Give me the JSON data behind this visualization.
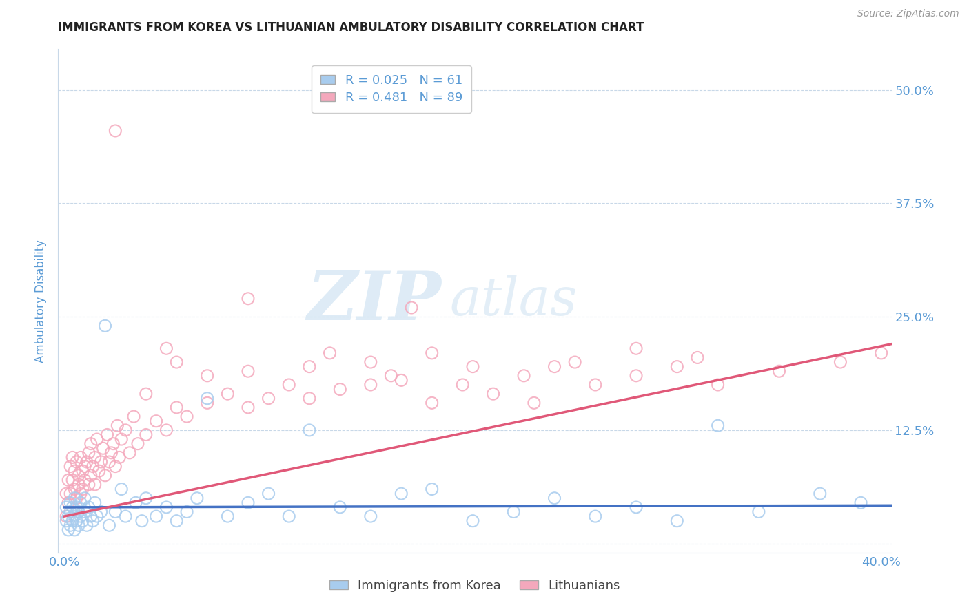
{
  "title": "IMMIGRANTS FROM KOREA VS LITHUANIAN AMBULATORY DISABILITY CORRELATION CHART",
  "source": "Source: ZipAtlas.com",
  "ylabel": "Ambulatory Disability",
  "y_ticks": [
    0.0,
    0.125,
    0.25,
    0.375,
    0.5
  ],
  "y_tick_labels": [
    "",
    "12.5%",
    "25.0%",
    "37.5%",
    "50.0%"
  ],
  "xlim": [
    -0.003,
    0.405
  ],
  "ylim": [
    -0.01,
    0.545
  ],
  "legend_entries": [
    {
      "label": "Immigrants from Korea",
      "R": "0.025",
      "N": "61",
      "color": "#a8ccee"
    },
    {
      "label": "Lithuanians",
      "R": "0.481",
      "N": "89",
      "color": "#f4a8bc"
    }
  ],
  "blue_scatter_x": [
    0.001,
    0.001,
    0.002,
    0.002,
    0.003,
    0.003,
    0.003,
    0.004,
    0.004,
    0.005,
    0.005,
    0.005,
    0.006,
    0.006,
    0.007,
    0.007,
    0.008,
    0.008,
    0.009,
    0.01,
    0.01,
    0.011,
    0.012,
    0.013,
    0.014,
    0.015,
    0.016,
    0.018,
    0.02,
    0.022,
    0.025,
    0.028,
    0.03,
    0.035,
    0.038,
    0.04,
    0.045,
    0.05,
    0.055,
    0.06,
    0.065,
    0.07,
    0.08,
    0.09,
    0.1,
    0.11,
    0.12,
    0.135,
    0.15,
    0.165,
    0.18,
    0.2,
    0.22,
    0.24,
    0.26,
    0.28,
    0.3,
    0.32,
    0.34,
    0.37,
    0.39
  ],
  "blue_scatter_y": [
    0.04,
    0.025,
    0.03,
    0.015,
    0.035,
    0.02,
    0.045,
    0.025,
    0.04,
    0.03,
    0.015,
    0.05,
    0.025,
    0.04,
    0.02,
    0.035,
    0.03,
    0.045,
    0.025,
    0.035,
    0.05,
    0.02,
    0.04,
    0.03,
    0.025,
    0.045,
    0.03,
    0.035,
    0.24,
    0.02,
    0.035,
    0.06,
    0.03,
    0.045,
    0.025,
    0.05,
    0.03,
    0.04,
    0.025,
    0.035,
    0.05,
    0.16,
    0.03,
    0.045,
    0.055,
    0.03,
    0.125,
    0.04,
    0.03,
    0.055,
    0.06,
    0.025,
    0.035,
    0.05,
    0.03,
    0.04,
    0.025,
    0.13,
    0.035,
    0.055,
    0.045
  ],
  "pink_scatter_x": [
    0.001,
    0.001,
    0.002,
    0.002,
    0.003,
    0.003,
    0.004,
    0.004,
    0.005,
    0.005,
    0.006,
    0.006,
    0.007,
    0.007,
    0.008,
    0.008,
    0.009,
    0.009,
    0.01,
    0.01,
    0.011,
    0.012,
    0.012,
    0.013,
    0.013,
    0.014,
    0.015,
    0.015,
    0.016,
    0.017,
    0.018,
    0.019,
    0.02,
    0.021,
    0.022,
    0.023,
    0.024,
    0.025,
    0.026,
    0.027,
    0.028,
    0.03,
    0.032,
    0.034,
    0.036,
    0.04,
    0.045,
    0.05,
    0.055,
    0.06,
    0.07,
    0.08,
    0.09,
    0.1,
    0.11,
    0.12,
    0.135,
    0.15,
    0.165,
    0.18,
    0.195,
    0.21,
    0.225,
    0.24,
    0.26,
    0.28,
    0.3,
    0.32,
    0.35,
    0.38,
    0.4,
    0.055,
    0.07,
    0.09,
    0.12,
    0.15,
    0.18,
    0.04,
    0.2,
    0.16,
    0.13,
    0.25,
    0.28,
    0.31,
    0.23,
    0.17,
    0.09,
    0.05,
    0.025
  ],
  "pink_scatter_y": [
    0.055,
    0.03,
    0.07,
    0.045,
    0.085,
    0.055,
    0.07,
    0.095,
    0.06,
    0.08,
    0.05,
    0.09,
    0.065,
    0.075,
    0.095,
    0.055,
    0.08,
    0.06,
    0.085,
    0.07,
    0.09,
    0.065,
    0.1,
    0.075,
    0.11,
    0.085,
    0.095,
    0.065,
    0.115,
    0.08,
    0.09,
    0.105,
    0.075,
    0.12,
    0.09,
    0.1,
    0.11,
    0.085,
    0.13,
    0.095,
    0.115,
    0.125,
    0.1,
    0.14,
    0.11,
    0.12,
    0.135,
    0.125,
    0.15,
    0.14,
    0.155,
    0.165,
    0.15,
    0.16,
    0.175,
    0.16,
    0.17,
    0.175,
    0.18,
    0.155,
    0.175,
    0.165,
    0.185,
    0.195,
    0.175,
    0.185,
    0.195,
    0.175,
    0.19,
    0.2,
    0.21,
    0.2,
    0.185,
    0.19,
    0.195,
    0.2,
    0.21,
    0.165,
    0.195,
    0.185,
    0.21,
    0.2,
    0.215,
    0.205,
    0.155,
    0.26,
    0.27,
    0.215,
    0.455
  ],
  "blue_line_x": [
    0.0,
    0.405
  ],
  "blue_line_y": [
    0.04,
    0.042
  ],
  "pink_line_x": [
    0.0,
    0.405
  ],
  "pink_line_y": [
    0.03,
    0.22
  ],
  "blue_color": "#a8ccee",
  "pink_color": "#f4a8bc",
  "blue_line_color": "#4472c4",
  "pink_line_color": "#e05878",
  "title_fontsize": 12,
  "axis_label_color": "#5b9bd5",
  "tick_label_color": "#5b9bd5",
  "watermark_zip": "ZIP",
  "watermark_atlas": "atlas"
}
